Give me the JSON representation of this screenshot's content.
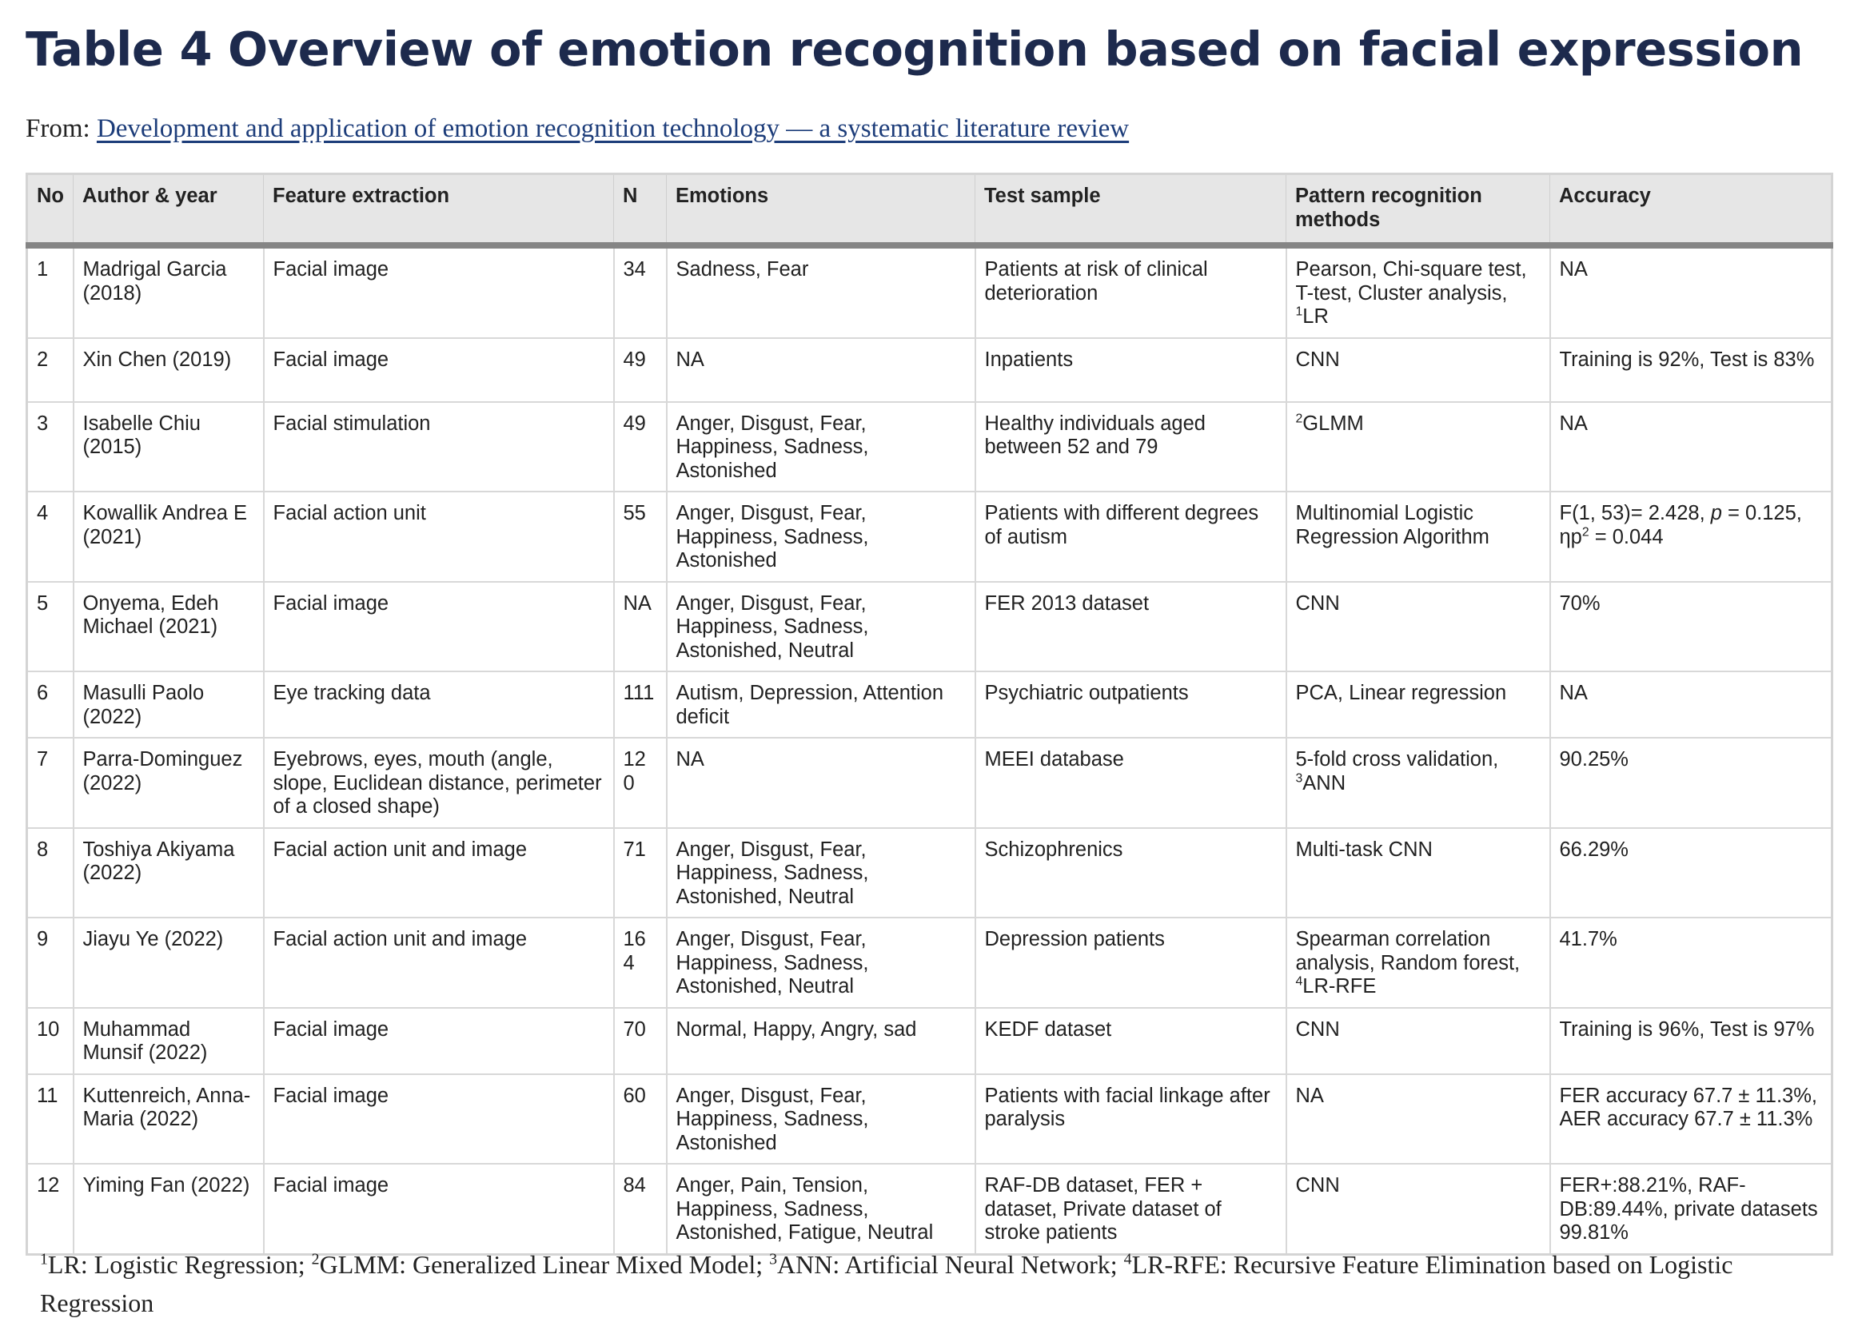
{
  "title": "Table 4 Overview of emotion recognition based on facial expression",
  "from_prefix": "From: ",
  "from_link": "Development and application of emotion recognition technology — a systematic literature review",
  "headers": {
    "no": "No",
    "author": "Author & year",
    "feature": "Feature extraction",
    "n": "N",
    "emotions": "Emotions",
    "test": "Test sample",
    "pattern": "Pattern recognition methods",
    "accuracy": "Accuracy"
  },
  "rows": [
    {
      "no": "1",
      "author": "Madrigal Garcia (2018)",
      "feature": "Facial image",
      "n": "34",
      "emotions": "Sadness, Fear",
      "test": "Patients at risk of clinical deterioration",
      "pattern_pre": "Pearson, Chi-square test, T-test, Cluster analysis, ",
      "pattern_sup": "1",
      "pattern_post": "LR",
      "accuracy": "NA"
    },
    {
      "no": "2",
      "author": "Xin Chen (2019)",
      "feature": "Facial image",
      "n": "49",
      "emotions": "NA",
      "test": "Inpatients",
      "pattern_pre": "CNN",
      "pattern_sup": "",
      "pattern_post": "",
      "accuracy": "Training is 92%, Test is 83%"
    },
    {
      "no": "3",
      "author": "Isabelle Chiu (2015)",
      "feature": "Facial stimulation",
      "n": "49",
      "emotions": "Anger, Disgust, Fear, Happiness, Sadness, Astonished",
      "test": "Healthy individuals aged between 52 and 79",
      "pattern_pre": "",
      "pattern_sup": "2",
      "pattern_post": "GLMM",
      "accuracy": "NA"
    },
    {
      "no": "4",
      "author": "Kowallik Andrea E (2021)",
      "feature": "Facial action unit",
      "n": "55",
      "emotions": "Anger, Disgust, Fear, Happiness, Sadness, Astonished",
      "test": "Patients with different degrees of autism",
      "pattern_pre": "Multinomial Logistic Regression Algorithm",
      "pattern_sup": "",
      "pattern_post": "",
      "accuracy_a": "F(1, 53)= 2.428, ",
      "accuracy_p": "p",
      "accuracy_b": " = 0.125, ηp",
      "accuracy_sup": "2",
      "accuracy_c": " = 0.044"
    },
    {
      "no": "5",
      "author": "Onyema, Edeh Michael (2021)",
      "feature": "Facial image",
      "n": "NA",
      "emotions": "Anger, Disgust, Fear, Happiness, Sadness, Astonished, Neutral",
      "test": "FER 2013 dataset",
      "pattern_pre": "CNN",
      "pattern_sup": "",
      "pattern_post": "",
      "accuracy": "70%"
    },
    {
      "no": "6",
      "author": "Masulli Paolo (2022)",
      "feature": "Eye tracking data",
      "n": "111",
      "emotions": "Autism, Depression, Attention deficit",
      "test": "Psychiatric outpatients",
      "pattern_pre": "PCA, Linear regression",
      "pattern_sup": "",
      "pattern_post": "",
      "accuracy": "NA"
    },
    {
      "no": "7",
      "author": "Parra-Dominguez (2022)",
      "feature": "Eyebrows, eyes, mouth (angle, slope, Euclidean distance, perimeter of a closed shape)",
      "n": "120",
      "emotions": "NA",
      "test": "MEEI database",
      "pattern_pre": "5-fold cross validation, ",
      "pattern_sup": "3",
      "pattern_post": "ANN",
      "accuracy": "90.25%"
    },
    {
      "no": "8",
      "author": "Toshiya Akiyama (2022)",
      "feature": "Facial action unit and image",
      "n": "71",
      "emotions": "Anger, Disgust, Fear, Happiness, Sadness, Astonished, Neutral",
      "test": "Schizophrenics",
      "pattern_pre": "Multi-task CNN",
      "pattern_sup": "",
      "pattern_post": "",
      "accuracy": "66.29%"
    },
    {
      "no": "9",
      "author": "Jiayu Ye (2022)",
      "feature": "Facial action unit and image",
      "n": "164",
      "emotions": "Anger, Disgust, Fear, Happiness, Sadness, Astonished, Neutral",
      "test": "Depression patients",
      "pattern_pre": "Spearman correlation analysis, Random forest, ",
      "pattern_sup": "4",
      "pattern_post": "LR-RFE",
      "accuracy": "41.7%"
    },
    {
      "no": "10",
      "author": "Muhammad Munsif (2022)",
      "feature": "Facial image",
      "n": "70",
      "emotions": "Normal, Happy, Angry, sad",
      "test": "KEDF dataset",
      "pattern_pre": "CNN",
      "pattern_sup": "",
      "pattern_post": "",
      "accuracy": "Training is 96%, Test is 97%"
    },
    {
      "no": "11",
      "author": "Kuttenreich, Anna-Maria (2022)",
      "feature": "Facial image",
      "n": "60",
      "emotions": "Anger, Disgust, Fear, Happiness, Sadness, Astonished",
      "test": "Patients with facial linkage after paralysis",
      "pattern_pre": "NA",
      "pattern_sup": "",
      "pattern_post": "",
      "accuracy": "FER accuracy 67.7 ± 11.3%, AER accuracy 67.7 ± 11.3%"
    },
    {
      "no": "12",
      "author": "Yiming Fan (2022)",
      "feature": "Facial image",
      "n": "84",
      "emotions": "Anger, Pain, Tension, Happiness, Sadness, Astonished, Fatigue, Neutral",
      "test": "RAF-DB dataset, FER + dataset, Private dataset of stroke patients",
      "pattern_pre": "CNN",
      "pattern_sup": "",
      "pattern_post": "",
      "accuracy": "FER+:88.21%, RAF-DB:89.44%, private datasets 99.81%"
    }
  ],
  "footnote": {
    "s1": "1",
    "t1": "LR: Logistic Regression; ",
    "s2": "2",
    "t2": "GLMM: Generalized Linear Mixed Model; ",
    "s3": "3",
    "t3": "ANN: Artificial Neural Network; ",
    "s4": "4",
    "t4": "LR-RFE: Recursive Feature Elimination based on Logistic Regression"
  }
}
